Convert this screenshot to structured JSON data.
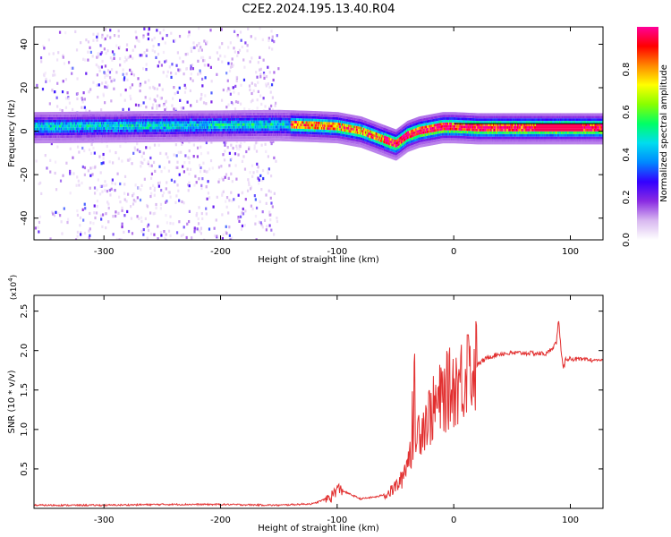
{
  "title": "C2E2.2024.195.13.40.R04",
  "chart_data": [
    {
      "type": "heatmap",
      "name": "spectrogram",
      "xlabel": "Height of straight line (km)",
      "ylabel": "Frequency (Hz)",
      "xlim": [
        -360,
        128
      ],
      "ylim": [
        -50,
        48
      ],
      "xticks": [
        -300,
        -200,
        -100,
        0,
        100
      ],
      "xtick_labels": [
        "-300",
        "-200",
        "-100",
        "0",
        "100"
      ],
      "yticks": [
        -40,
        -20,
        0,
        20,
        40
      ],
      "ytick_labels": [
        "-40",
        "-20",
        "0",
        "20",
        "40"
      ],
      "ridge_centerline": {
        "x": [
          -360,
          -150,
          -120,
          -100,
          -80,
          -60,
          -50,
          -45,
          -40,
          -30,
          -20,
          -10,
          0,
          20,
          60,
          100,
          128
        ],
        "y": [
          2,
          3,
          2.5,
          2,
          0,
          -4,
          -6,
          -4,
          -2,
          0,
          1,
          2,
          2,
          1.5,
          1.5,
          1.5,
          1.5
        ]
      },
      "scatter_bands_km": [
        [
          -360,
          -150
        ],
        [
          -320,
          -210
        ],
        [
          -200,
          -155
        ]
      ],
      "reference_line_hz": 3.5,
      "colorbar": {
        "label": "Normalized spectral amplitude",
        "range": [
          0,
          1
        ],
        "ticks": [
          0.0,
          0.2,
          0.4,
          0.6,
          0.8
        ],
        "tick_labels": [
          "0.0",
          "0.2",
          "0.4",
          "0.6",
          "0.8"
        ],
        "colors": [
          "#ffffff",
          "#d8b8f0",
          "#8a2be2",
          "#3300ff",
          "#0088ff",
          "#00ddee",
          "#00ff66",
          "#88ff00",
          "#ffff00",
          "#ff8800",
          "#ff0000",
          "#ff0099"
        ]
      }
    },
    {
      "type": "line",
      "name": "snr",
      "xlabel": "Height of straight line (km)",
      "ylabel": "SNR (10 * v/v)",
      "y_scale_label": "(x10",
      "y_scale_exp": "4",
      "xlim": [
        -360,
        128
      ],
      "ylim": [
        0,
        2.7
      ],
      "xticks": [
        -300,
        -200,
        -100,
        0,
        100
      ],
      "xtick_labels": [
        "-300",
        "-200",
        "-100",
        "0",
        "100"
      ],
      "yticks": [
        0.5,
        1.0,
        1.5,
        2.0,
        2.5
      ],
      "ytick_labels": [
        "0.5",
        "1.0",
        "1.5",
        "2.0",
        "2.5"
      ],
      "color": "#e23030",
      "x": [
        -360,
        -300,
        -250,
        -200,
        -150,
        -120,
        -105,
        -100,
        -95,
        -80,
        -65,
        -55,
        -45,
        -40,
        -35,
        -30,
        -25,
        -20,
        -15,
        -10,
        -5,
        0,
        5,
        10,
        15,
        20,
        30,
        40,
        60,
        80,
        88,
        90,
        92,
        94,
        96,
        100,
        110,
        128
      ],
      "values": [
        0.04,
        0.04,
        0.05,
        0.05,
        0.04,
        0.06,
        0.15,
        0.25,
        0.22,
        0.12,
        0.15,
        0.2,
        0.35,
        0.6,
        0.8,
        1.0,
        1.1,
        1.2,
        1.3,
        1.4,
        1.5,
        1.55,
        1.62,
        1.66,
        1.72,
        1.82,
        1.92,
        1.96,
        1.97,
        1.96,
        2.1,
        2.4,
        2.0,
        1.75,
        1.9,
        1.9,
        1.88,
        1.88
      ]
    }
  ]
}
